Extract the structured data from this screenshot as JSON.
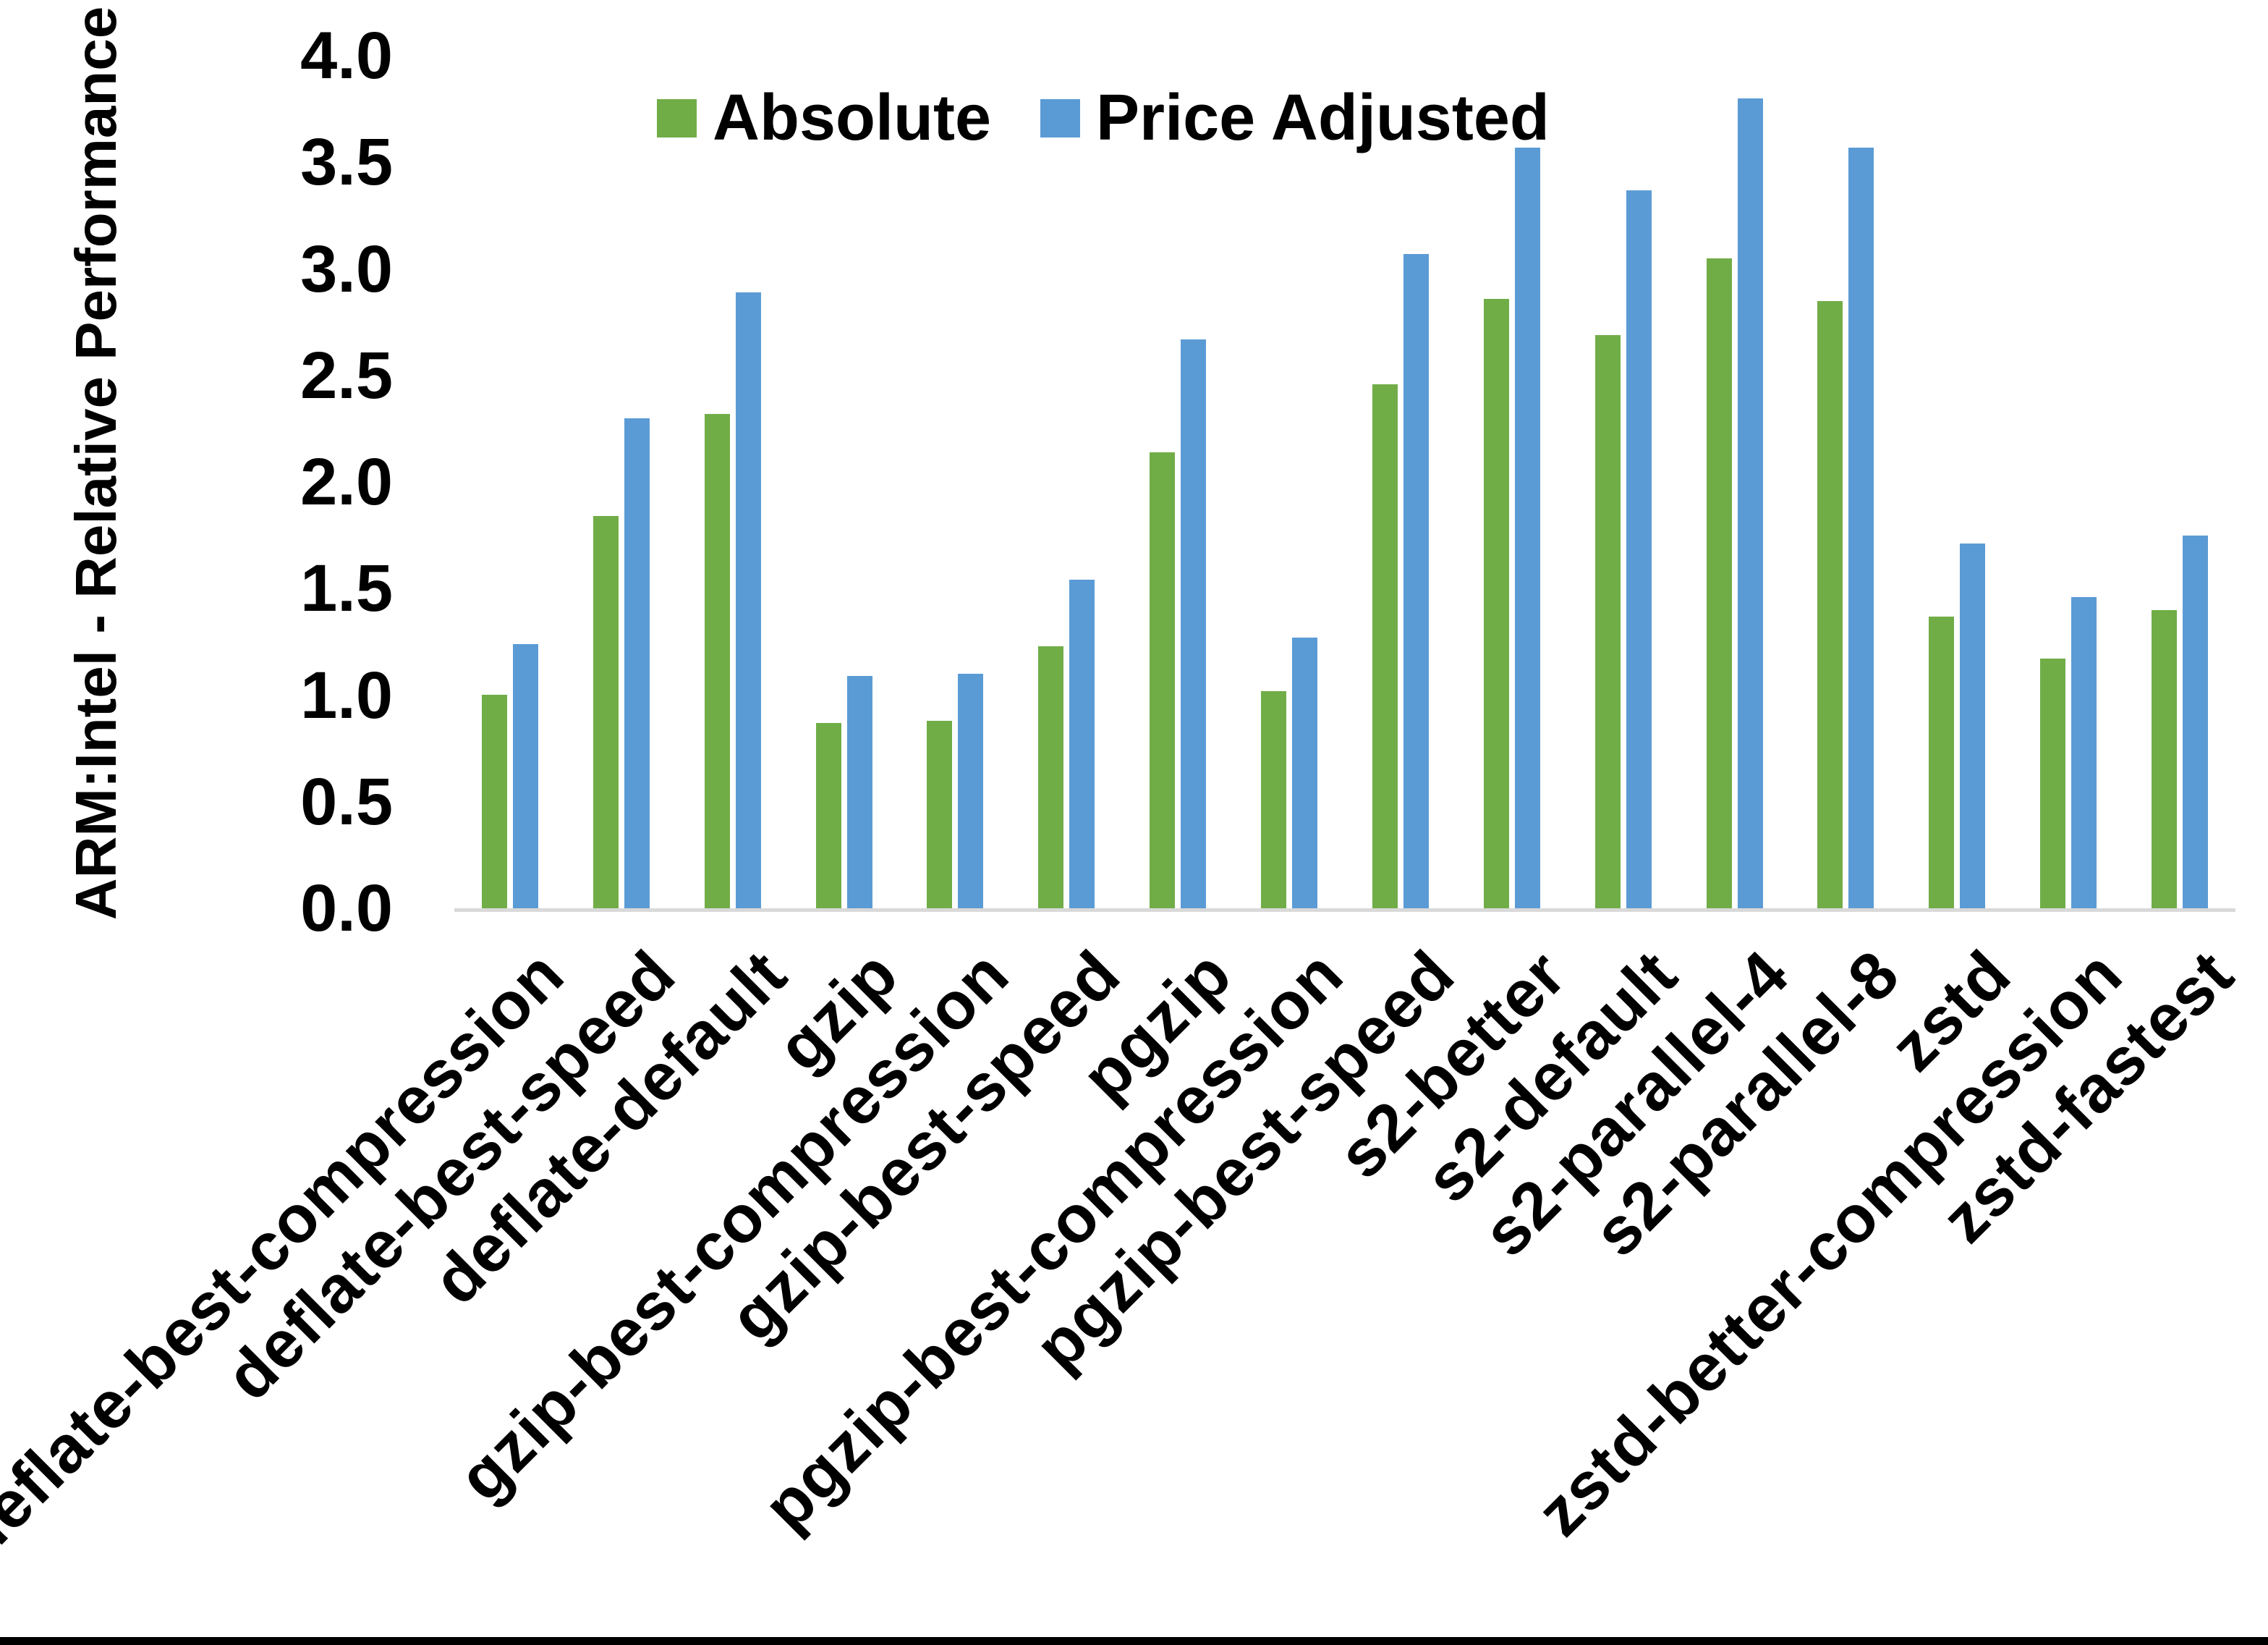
{
  "chart_data": {
    "type": "bar",
    "title": "",
    "xlabel": "",
    "ylabel": "ARM:Intel - Relative Performance",
    "ylim": [
      0,
      4.0
    ],
    "y_ticks": [
      "4.0",
      "3.5",
      "3.0",
      "2.5",
      "2.0",
      "1.5",
      "1.0",
      "0.5",
      "0.0"
    ],
    "grid": false,
    "legend_position": "top-center",
    "axis_line_color": "#d9d9d9",
    "background": "#ffffff",
    "categories": [
      "deflate-best-compression",
      "deflate-best-speed",
      "deflate-default",
      "gzip",
      "gzip-best-compression",
      "gzip-best-speed",
      "pgzip",
      "pgzip-best-compression",
      "pgzip-best-speed",
      "s2-better",
      "s2-default",
      "s2-parallel-4",
      "s2-parallel-8",
      "zstd",
      "zstd-better-compression",
      "zstd-fastest"
    ],
    "series": [
      {
        "name": "Absolute",
        "color": "#70AD47",
        "values": [
          1.0,
          1.84,
          2.32,
          0.87,
          0.88,
          1.23,
          2.14,
          1.02,
          2.46,
          2.86,
          2.69,
          3.05,
          2.85,
          1.37,
          1.17,
          1.4
        ]
      },
      {
        "name": "Price Adjusted",
        "color": "#5B9BD5",
        "values": [
          1.24,
          2.3,
          2.89,
          1.09,
          1.1,
          1.54,
          2.67,
          1.27,
          3.07,
          3.57,
          3.37,
          3.8,
          3.57,
          1.71,
          1.46,
          1.75
        ]
      }
    ]
  }
}
